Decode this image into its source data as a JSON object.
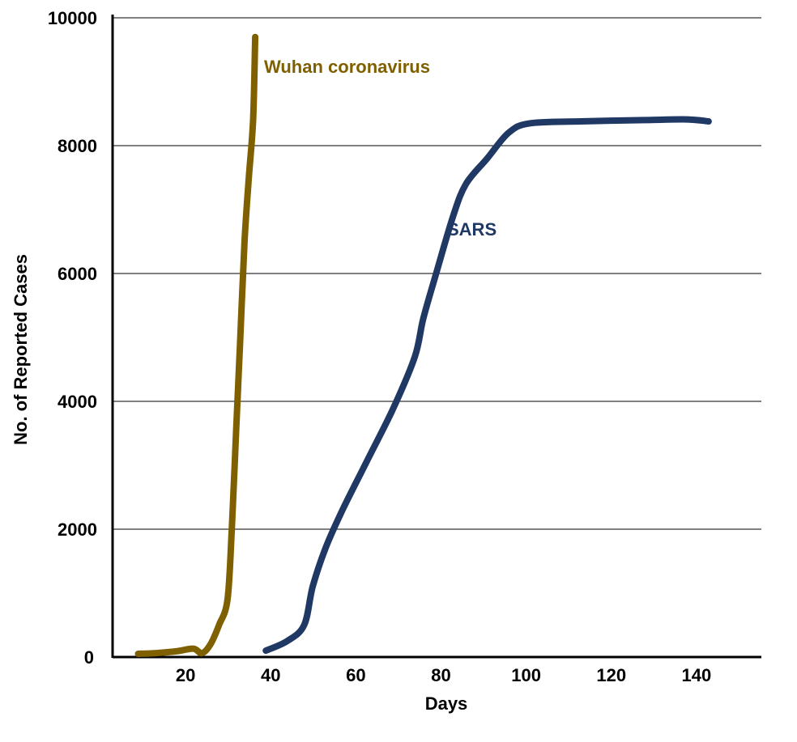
{
  "chart_data": {
    "type": "line",
    "title": "",
    "xlabel": "Days",
    "ylabel": "No. of Reported Cases",
    "ylim": [
      0,
      10000
    ],
    "grid": true,
    "x_ticks": [
      {
        "label": "20",
        "value": 20
      },
      {
        "label": "40",
        "value": 40
      },
      {
        "label": "60",
        "value": 60
      },
      {
        "label": "80",
        "value": 80
      },
      {
        "label": "100",
        "value": 100
      },
      {
        "label": "120",
        "value": 120
      },
      {
        "label": "140",
        "value": 140
      }
    ],
    "y_ticks": [
      {
        "label": "0",
        "value": 0
      },
      {
        "label": "2000",
        "value": 2000
      },
      {
        "label": "4000",
        "value": 4000
      },
      {
        "label": "6000",
        "value": 6000
      },
      {
        "label": "8000",
        "value": 8000
      },
      {
        "label": "10000",
        "value": 10000
      }
    ],
    "series": [
      {
        "name": "Wuhan coronavirus",
        "color": "#7F6000",
        "points": [
          [
            6,
            50
          ],
          [
            10,
            60
          ],
          [
            15,
            90
          ],
          [
            19,
            130
          ],
          [
            21,
            60
          ],
          [
            23,
            200
          ],
          [
            25,
            500
          ],
          [
            27,
            900
          ],
          [
            28,
            2000
          ],
          [
            29,
            3500
          ],
          [
            30,
            5000
          ],
          [
            31,
            6500
          ],
          [
            32,
            7500
          ],
          [
            33,
            8400
          ],
          [
            33.5,
            9700
          ]
        ]
      },
      {
        "name": "SARS",
        "color": "#1F3864",
        "points": [
          [
            36,
            100
          ],
          [
            41,
            250
          ],
          [
            45,
            500
          ],
          [
            47,
            1100
          ],
          [
            50,
            1700
          ],
          [
            54,
            2300
          ],
          [
            60,
            3100
          ],
          [
            66,
            3900
          ],
          [
            71,
            4700
          ],
          [
            73,
            5300
          ],
          [
            76,
            6000
          ],
          [
            80,
            6900
          ],
          [
            83,
            7400
          ],
          [
            88,
            7800
          ],
          [
            93,
            8200
          ],
          [
            98,
            8350
          ],
          [
            110,
            8380
          ],
          [
            125,
            8400
          ],
          [
            135,
            8410
          ],
          [
            140,
            8380
          ]
        ]
      }
    ]
  }
}
